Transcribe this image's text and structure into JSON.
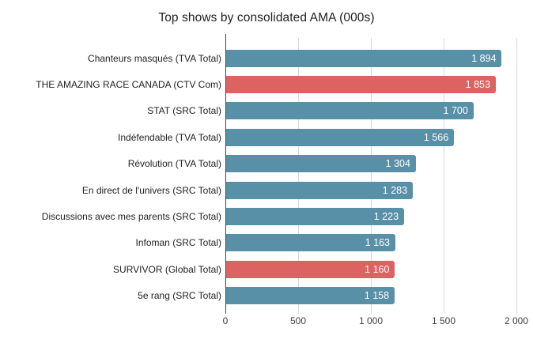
{
  "chart_data": {
    "type": "bar",
    "orientation": "horizontal",
    "title": "Top shows by consolidated AMA (000s)",
    "xlabel": "",
    "ylabel": "",
    "xlim": [
      0,
      2000
    ],
    "grid": true,
    "legend_position": "none",
    "x_ticks": [
      "0",
      "500",
      "1 000",
      "1 500",
      "2 000"
    ],
    "x_tick_values": [
      0,
      500,
      1000,
      1500,
      2000
    ],
    "colors": {
      "default_bar": "#5890a8",
      "highlight_bar": "#dd6363",
      "gridline": "#d9d9d9",
      "axis_line": "#424242",
      "value_label": "#ffffff",
      "category_label": "#222222",
      "title": "#212121"
    },
    "items": [
      {
        "label": "Chanteurs masqués (TVA Total)",
        "value": 1894,
        "display_value": "1 894",
        "highlight": false
      },
      {
        "label": "THE AMAZING RACE CANADA (CTV Com)",
        "value": 1853,
        "display_value": "1 853",
        "highlight": true
      },
      {
        "label": "STAT (SRC Total)",
        "value": 1700,
        "display_value": "1 700",
        "highlight": false
      },
      {
        "label": "Indéfendable (TVA Total)",
        "value": 1566,
        "display_value": "1 566",
        "highlight": false
      },
      {
        "label": "Révolution (TVA Total)",
        "value": 1304,
        "display_value": "1 304",
        "highlight": false
      },
      {
        "label": "En direct de l'univers (SRC Total)",
        "value": 1283,
        "display_value": "1 283",
        "highlight": false
      },
      {
        "label": "Discussions avec mes parents (SRC Total)",
        "value": 1223,
        "display_value": "1 223",
        "highlight": false
      },
      {
        "label": "Infoman (SRC Total)",
        "value": 1163,
        "display_value": "1 163",
        "highlight": false
      },
      {
        "label": "SURVIVOR (Global Total)",
        "value": 1160,
        "display_value": "1 160",
        "highlight": true
      },
      {
        "label": "5e rang (SRC Total)",
        "value": 1158,
        "display_value": "1 158",
        "highlight": false
      }
    ]
  }
}
